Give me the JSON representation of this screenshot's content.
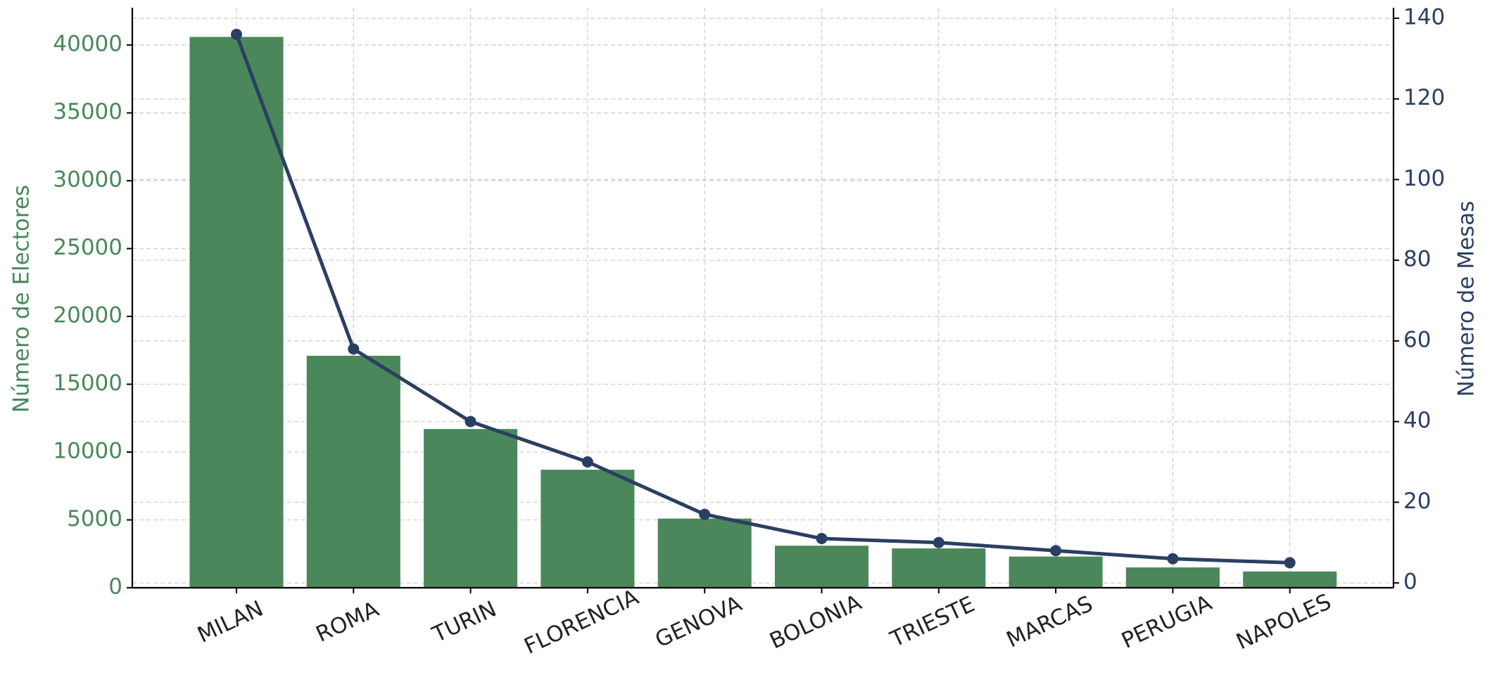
{
  "chart_data": {
    "type": "bar",
    "categories": [
      "MILAN",
      "ROMA",
      "TURIN",
      "FLORENCIA",
      "GENOVA",
      "BOLONIA",
      "TRIESTE",
      "MARCAS",
      "PERUGIA",
      "NAPOLES"
    ],
    "series": [
      {
        "type": "bar",
        "color": "#4a875a",
        "values": [
          40600,
          17100,
          11700,
          8700,
          5100,
          3100,
          2900,
          2300,
          1500,
          1200
        ]
      },
      {
        "type": "line",
        "color": "#2b3f63",
        "axis": "y2",
        "values": [
          136,
          58,
          40,
          30,
          17,
          11,
          10,
          8,
          6,
          5
        ]
      }
    ],
    "ylabel": "Número de Electores",
    "y2label": "Número de Mesas",
    "ylim": [
      0,
      42750
    ],
    "yticks": [
      0,
      5000,
      10000,
      15000,
      20000,
      25000,
      30000,
      35000,
      40000
    ],
    "y2lim": [
      -1.2,
      142.6
    ],
    "y2ticks": [
      0,
      20,
      40,
      60,
      80,
      100,
      120,
      140
    ],
    "grid": true
  }
}
